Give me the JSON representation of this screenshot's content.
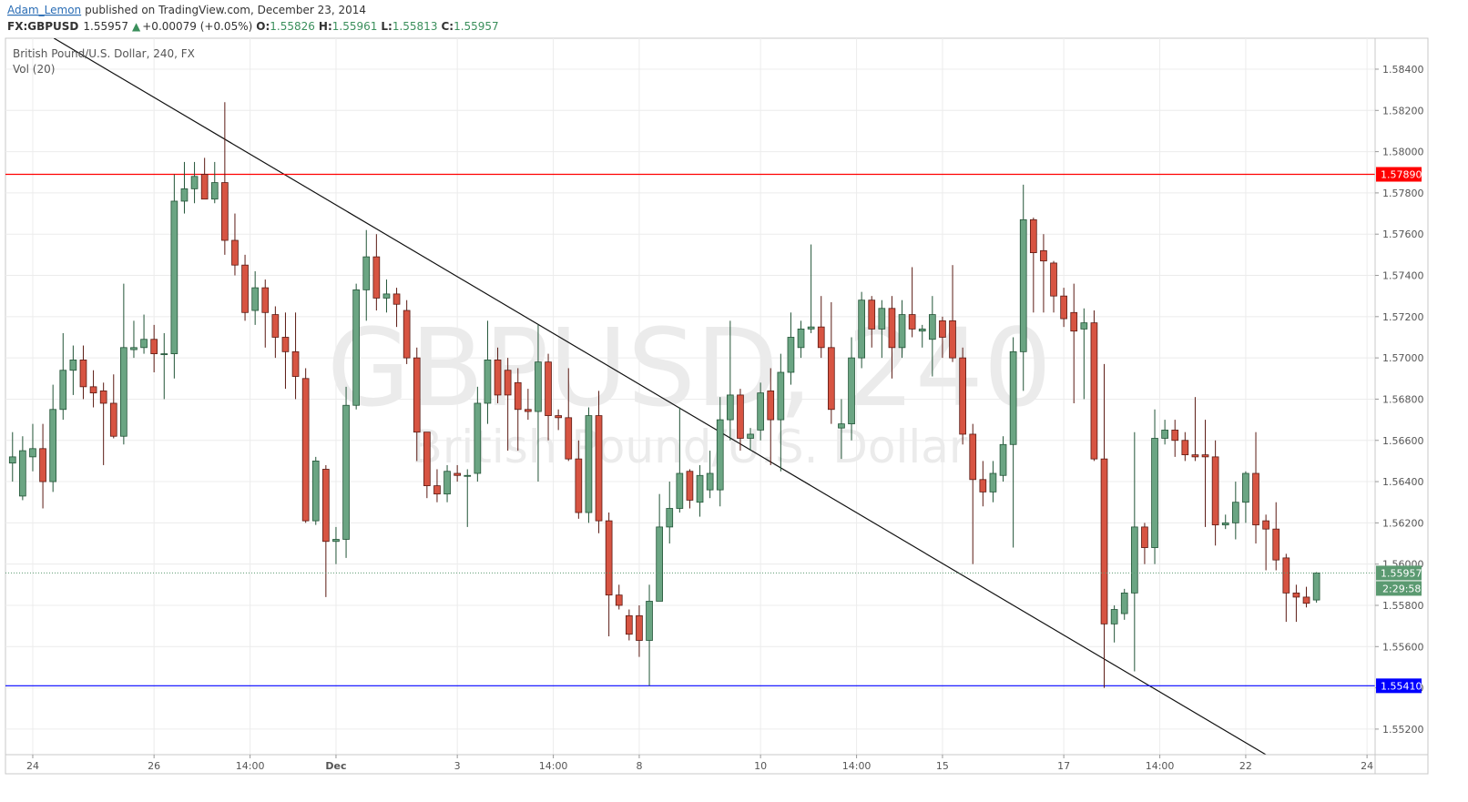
{
  "header": {
    "author": "Adam_Lemon",
    "published": "published on TradingView.com, December 23, 2014",
    "symbol": "FX:GBPUSD",
    "last": "1.55957",
    "arrow": "▲",
    "change": "+0.00079 (+0.05%)",
    "ohlc": [
      {
        "label": "O:",
        "value": "1.55826"
      },
      {
        "label": "H:",
        "value": "1.55961"
      },
      {
        "label": "L:",
        "value": "1.55813"
      },
      {
        "label": "C:",
        "value": "1.55957"
      }
    ]
  },
  "chart_data": {
    "type": "candlestick",
    "legend_title": "British Pound/U.S. Dollar, 240, FX",
    "indicator": "Vol (20)",
    "watermark": [
      "GBPUSD, 240",
      "British Pound/U.S. Dollar"
    ],
    "up_color": "#6ba583",
    "down_color": "#d75442",
    "up_border": "#225437",
    "down_border": "#5b1a13",
    "grid": true,
    "x": [
      0,
      1,
      2,
      3,
      4,
      5,
      6,
      7,
      8,
      9,
      10,
      11,
      12,
      13,
      14,
      15,
      16,
      17,
      18,
      19,
      20,
      21,
      22,
      23,
      24,
      25,
      26,
      27,
      28,
      29,
      30,
      31,
      32,
      33,
      34,
      35,
      36,
      37,
      38,
      39,
      40,
      41,
      42,
      43,
      44,
      45,
      46,
      47,
      48,
      49,
      50,
      51,
      52,
      53,
      54,
      55,
      56,
      57,
      58,
      59,
      60,
      61,
      62,
      63,
      64,
      65,
      66,
      67,
      68,
      69,
      70,
      71,
      72,
      73,
      74,
      75,
      76,
      77,
      78,
      79,
      80,
      81,
      82,
      83,
      84,
      85,
      86,
      87,
      88,
      89,
      90,
      91,
      92,
      93,
      94,
      95,
      96,
      97,
      98,
      99,
      100,
      101,
      102,
      103,
      104,
      105,
      106,
      107,
      108,
      109,
      110,
      111,
      112,
      113,
      114,
      115,
      116,
      117,
      118,
      119,
      120,
      121,
      122,
      123,
      124,
      125,
      126,
      127,
      128,
      129
    ],
    "open": [
      1.5649,
      1.5633,
      1.5652,
      1.5656,
      1.564,
      1.5675,
      1.5694,
      1.5699,
      1.5686,
      1.5684,
      1.5678,
      1.5662,
      1.5704,
      1.5705,
      1.5709,
      1.5702,
      1.5702,
      1.5776,
      1.5782,
      1.5789,
      1.5777,
      1.5785,
      1.5757,
      1.5745,
      1.5723,
      1.5734,
      1.5721,
      1.571,
      1.5703,
      1.569,
      1.5621,
      1.5646,
      1.5611,
      1.5612,
      1.5677,
      1.5733,
      1.5749,
      1.5729,
      1.5731,
      1.5723,
      1.57,
      1.5664,
      1.5638,
      1.5634,
      1.5644,
      1.5643,
      1.5644,
      1.5678,
      1.5699,
      1.5694,
      1.5688,
      1.5675,
      1.5674,
      1.5698,
      1.5672,
      1.5671,
      1.5651,
      1.5625,
      1.5672,
      1.5621,
      1.5585,
      1.5575,
      1.5575,
      1.5563,
      1.5582,
      1.5618,
      1.5627,
      1.5645,
      1.563,
      1.5636,
      1.5636,
      1.567,
      1.5682,
      1.5661,
      1.5665,
      1.5684,
      1.567,
      1.5693,
      1.5705,
      1.5714,
      1.5715,
      1.5705,
      1.5666,
      1.5668,
      1.57,
      1.5728,
      1.5714,
      1.5724,
      1.5705,
      1.5721,
      1.5713,
      1.5709,
      1.5718,
      1.5718,
      1.57,
      1.5663,
      1.5641,
      1.5635,
      1.5643,
      1.5658,
      1.5703,
      1.5767,
      1.5752,
      1.5746,
      1.573,
      1.5722,
      1.5714,
      1.5717,
      1.5651,
      1.5571,
      1.5576,
      1.5586,
      1.5618,
      1.5608,
      1.5661,
      1.5665,
      1.566,
      1.5653,
      1.5653,
      1.5652,
      1.5619,
      1.562,
      1.563,
      1.5644,
      1.5621,
      1.5617,
      1.5603,
      1.5586,
      1.5584,
      1.55826
    ],
    "high": [
      1.5664,
      1.5662,
      1.5668,
      1.5668,
      1.5687,
      1.5712,
      1.5706,
      1.5706,
      1.5694,
      1.5688,
      1.5692,
      1.5736,
      1.5718,
      1.5721,
      1.5716,
      1.5712,
      1.5789,
      1.5795,
      1.5795,
      1.5797,
      1.5795,
      1.5824,
      1.577,
      1.575,
      1.5742,
      1.5738,
      1.5725,
      1.5722,
      1.5722,
      1.5695,
      1.5652,
      1.5648,
      1.5618,
      1.5686,
      1.5736,
      1.5762,
      1.576,
      1.5738,
      1.5734,
      1.5728,
      1.5705,
      1.5664,
      1.5646,
      1.5648,
      1.5648,
      1.5646,
      1.5686,
      1.5718,
      1.5705,
      1.57,
      1.5695,
      1.5685,
      1.5716,
      1.5702,
      1.5675,
      1.5695,
      1.566,
      1.5676,
      1.5684,
      1.5625,
      1.559,
      1.5578,
      1.558,
      1.559,
      1.5634,
      1.564,
      1.5676,
      1.5646,
      1.5648,
      1.5655,
      1.5681,
      1.5718,
      1.5685,
      1.5666,
      1.5688,
      1.5695,
      1.5702,
      1.5722,
      1.5718,
      1.5755,
      1.573,
      1.5727,
      1.568,
      1.571,
      1.5732,
      1.573,
      1.5728,
      1.573,
      1.5728,
      1.5744,
      1.5716,
      1.573,
      1.572,
      1.5745,
      1.5705,
      1.5668,
      1.565,
      1.565,
      1.5662,
      1.571,
      1.5784,
      1.5768,
      1.576,
      1.5747,
      1.5734,
      1.5736,
      1.5724,
      1.5723,
      1.5697,
      1.558,
      1.5588,
      1.5664,
      1.562,
      1.5675,
      1.567,
      1.567,
      1.5664,
      1.5681,
      1.567,
      1.566,
      1.5624,
      1.564,
      1.5645,
      1.5664,
      1.5624,
      1.563,
      1.5605,
      1.559,
      1.5589,
      1.55961
    ],
    "low": [
      1.564,
      1.5631,
      1.5645,
      1.5627,
      1.5635,
      1.567,
      1.5682,
      1.568,
      1.5676,
      1.5648,
      1.5661,
      1.5658,
      1.57,
      1.5702,
      1.5693,
      1.568,
      1.569,
      1.577,
      1.5775,
      1.5777,
      1.5775,
      1.575,
      1.574,
      1.5718,
      1.5716,
      1.5705,
      1.57,
      1.5685,
      1.568,
      1.562,
      1.5619,
      1.5584,
      1.56,
      1.5603,
      1.5675,
      1.5718,
      1.5723,
      1.5722,
      1.5715,
      1.5697,
      1.565,
      1.5632,
      1.563,
      1.563,
      1.564,
      1.5618,
      1.564,
      1.5668,
      1.5678,
      1.5655,
      1.5655,
      1.567,
      1.564,
      1.566,
      1.5665,
      1.565,
      1.5622,
      1.562,
      1.5615,
      1.5565,
      1.5578,
      1.5563,
      1.5555,
      1.5541,
      1.5582,
      1.561,
      1.5625,
      1.5627,
      1.5623,
      1.5632,
      1.5628,
      1.566,
      1.5655,
      1.5655,
      1.566,
      1.5648,
      1.5645,
      1.5687,
      1.57,
      1.5712,
      1.57,
      1.5668,
      1.5651,
      1.566,
      1.5695,
      1.5705,
      1.57,
      1.569,
      1.57,
      1.571,
      1.5705,
      1.5691,
      1.57,
      1.5698,
      1.5658,
      1.56,
      1.5628,
      1.563,
      1.564,
      1.5608,
      1.5684,
      1.5722,
      1.5722,
      1.5722,
      1.5715,
      1.5678,
      1.568,
      1.565,
      1.554,
      1.5562,
      1.5573,
      1.5548,
      1.56,
      1.56,
      1.5658,
      1.5652,
      1.565,
      1.565,
      1.5618,
      1.5609,
      1.5617,
      1.5612,
      1.562,
      1.561,
      1.5597,
      1.5597,
      1.5572,
      1.5572,
      1.5579,
      1.55813
    ],
    "close": [
      1.5652,
      1.5655,
      1.5656,
      1.564,
      1.5675,
      1.5694,
      1.5699,
      1.5686,
      1.5683,
      1.5678,
      1.5662,
      1.5705,
      1.5705,
      1.5709,
      1.5702,
      1.5702,
      1.5776,
      1.5782,
      1.5788,
      1.5777,
      1.5785,
      1.5757,
      1.5745,
      1.5722,
      1.5734,
      1.5722,
      1.571,
      1.5703,
      1.5691,
      1.5621,
      1.565,
      1.5611,
      1.5612,
      1.5677,
      1.5733,
      1.5749,
      1.5729,
      1.5731,
      1.5726,
      1.57,
      1.5664,
      1.5638,
      1.5634,
      1.5645,
      1.5643,
      1.5643,
      1.5678,
      1.5699,
      1.5682,
      1.5682,
      1.5675,
      1.5674,
      1.5698,
      1.5672,
      1.5671,
      1.5651,
      1.5625,
      1.5672,
      1.5621,
      1.5585,
      1.558,
      1.5566,
      1.5563,
      1.5582,
      1.5618,
      1.5627,
      1.5644,
      1.5631,
      1.5643,
      1.5644,
      1.567,
      1.5682,
      1.5661,
      1.5663,
      1.5683,
      1.567,
      1.5693,
      1.571,
      1.5714,
      1.5715,
      1.5705,
      1.5675,
      1.5668,
      1.57,
      1.5728,
      1.5714,
      1.5724,
      1.5705,
      1.5721,
      1.5714,
      1.5714,
      1.5721,
      1.571,
      1.57,
      1.5663,
      1.5641,
      1.5635,
      1.5644,
      1.5658,
      1.5703,
      1.5767,
      1.5751,
      1.5747,
      1.573,
      1.5719,
      1.5713,
      1.5717,
      1.5651,
      1.5571,
      1.5578,
      1.5586,
      1.5618,
      1.5608,
      1.5661,
      1.5665,
      1.566,
      1.5653,
      1.5652,
      1.5652,
      1.5619,
      1.562,
      1.563,
      1.5644,
      1.5619,
      1.5617,
      1.5602,
      1.5586,
      1.5584,
      1.5581,
      1.55957
    ],
    "xlim": [
      -0.7,
      134.8
    ],
    "xticks": [
      {
        "value": 2,
        "label": "24"
      },
      {
        "value": 14,
        "label": "26"
      },
      {
        "value": 23.5,
        "label": "14:00"
      },
      {
        "value": 32,
        "label": "Dec"
      },
      {
        "value": 44,
        "label": "3"
      },
      {
        "value": 53.5,
        "label": "14:00"
      },
      {
        "value": 62,
        "label": "8"
      },
      {
        "value": 74,
        "label": "10"
      },
      {
        "value": 83.5,
        "label": "14:00"
      },
      {
        "value": 92,
        "label": "15"
      },
      {
        "value": 104,
        "label": "17"
      },
      {
        "value": 113.5,
        "label": "14:00"
      },
      {
        "value": 122,
        "label": "22"
      },
      {
        "value": 134,
        "label": "24"
      }
    ],
    "ylim": [
      1.55076,
      1.5855
    ],
    "yticks": [
      {
        "value": 1.552,
        "label": "1.55200"
      },
      {
        "value": 1.554,
        "label": "1.55400"
      },
      {
        "value": 1.556,
        "label": "1.55600"
      },
      {
        "value": 1.558,
        "label": "1.55800"
      },
      {
        "value": 1.56,
        "label": "1.56000"
      },
      {
        "value": 1.562,
        "label": "1.56200"
      },
      {
        "value": 1.564,
        "label": "1.56400"
      },
      {
        "value": 1.566,
        "label": "1.56600"
      },
      {
        "value": 1.568,
        "label": "1.56800"
      },
      {
        "value": 1.57,
        "label": "1.57000"
      },
      {
        "value": 1.572,
        "label": "1.57200"
      },
      {
        "value": 1.574,
        "label": "1.57400"
      },
      {
        "value": 1.576,
        "label": "1.57600"
      },
      {
        "value": 1.578,
        "label": "1.57800"
      },
      {
        "value": 1.58,
        "label": "1.58000"
      },
      {
        "value": 1.582,
        "label": "1.58200"
      },
      {
        "value": 1.584,
        "label": "1.58400"
      }
    ],
    "price_lines": [
      {
        "value": 1.5789,
        "label": "1.57890",
        "color": "#ff0000"
      },
      {
        "value": 1.5541,
        "label": "1.55410",
        "color": "#0000ff"
      }
    ],
    "last_price": {
      "value": 1.55957,
      "label": "1.55957",
      "timer": "2:29:58",
      "color": "#5b9a71"
    },
    "trendline": {
      "x": [
        4.1,
        124
      ],
      "y": [
        1.5855,
        1.55076
      ]
    }
  }
}
